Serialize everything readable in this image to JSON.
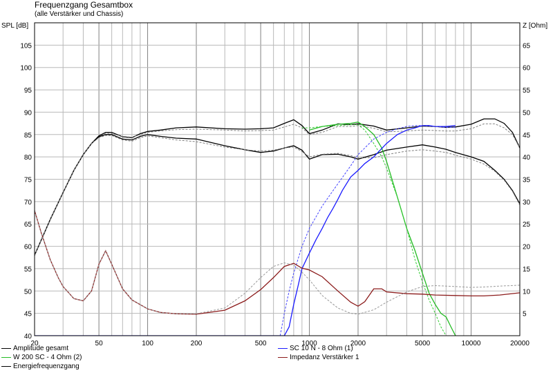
{
  "chart_data": {
    "type": "line",
    "title": "Frequenzgang Gesamtbox",
    "subtitle": "(alle Verstärker und Chassis)",
    "ylabel_left": "SPL [dB]",
    "ylabel_right": "Z [Ohm]",
    "x_scale": "log",
    "xlim": [
      20,
      20000
    ],
    "ylim_left": [
      40,
      110
    ],
    "ylim_right": [
      0,
      70
    ],
    "grid": true,
    "x_ticks": [
      "20",
      "50",
      "100",
      "200",
      "500",
      "1000",
      "2000",
      "5000",
      "10000",
      "20000"
    ],
    "y_ticks_left": [
      "40",
      "45",
      "50",
      "55",
      "60",
      "65",
      "70",
      "75",
      "80",
      "85",
      "90",
      "95",
      "100",
      "105"
    ],
    "y_ticks_right": [
      "5",
      "10",
      "15",
      "20",
      "25",
      "30",
      "35",
      "40",
      "45",
      "50",
      "55",
      "60",
      "65"
    ],
    "series": [
      {
        "name": "Amplitude gesamt",
        "color": "#000000",
        "dashed": false,
        "x": [
          20,
          25,
          30,
          35,
          40,
          45,
          50,
          55,
          60,
          70,
          80,
          90,
          100,
          120,
          150,
          200,
          300,
          400,
          500,
          600,
          700,
          800,
          900,
          1000,
          1200,
          1500,
          1800,
          2000,
          2500,
          3000,
          4000,
          5000,
          6000,
          7000,
          8000,
          10000,
          12000,
          14000,
          16000,
          18000,
          20000
        ],
        "y": [
          58,
          66,
          72,
          77,
          80.5,
          83,
          84.7,
          85.5,
          85.5,
          84.5,
          84.3,
          85.2,
          85.7,
          86,
          86.5,
          86.7,
          86.3,
          86.2,
          86.3,
          86.5,
          87.5,
          88.3,
          87,
          85.2,
          86,
          87.4,
          87.2,
          87.4,
          86.9,
          86,
          86.5,
          86.9,
          86.8,
          86.6,
          86.7,
          87.3,
          88.5,
          88.5,
          87.5,
          85.5,
          82
        ]
      },
      {
        "name": "Amplitude gesamt",
        "color": "#808080",
        "dashed": true,
        "x": [
          20,
          25,
          30,
          35,
          40,
          45,
          50,
          55,
          60,
          70,
          80,
          90,
          100,
          120,
          150,
          200,
          300,
          400,
          500,
          600,
          700,
          800,
          900,
          1000,
          1200,
          1500,
          1800,
          2000,
          2500,
          3000,
          4000,
          5000,
          6000,
          7000,
          8000,
          10000,
          12000,
          14000,
          16000,
          18000,
          20000
        ],
        "y": [
          58,
          66,
          72,
          77,
          80.5,
          83,
          84.5,
          85.3,
          85.2,
          84.6,
          84.4,
          85,
          85.5,
          85.8,
          86.1,
          86.2,
          86,
          85.8,
          85.9,
          86,
          86.7,
          87.3,
          86.5,
          85,
          85.5,
          86.8,
          86.8,
          87,
          86.4,
          85.6,
          85.8,
          86,
          85.9,
          85.8,
          85.8,
          86.3,
          87.4,
          87.4,
          86.5,
          85,
          82
        ]
      },
      {
        "name": "Energiefrequenzgang",
        "color": "#000000",
        "dashed": false,
        "x": [
          20,
          25,
          30,
          35,
          40,
          45,
          50,
          55,
          60,
          70,
          80,
          90,
          100,
          120,
          150,
          200,
          300,
          400,
          500,
          600,
          700,
          800,
          900,
          1000,
          1200,
          1500,
          1800,
          2000,
          2500,
          3000,
          4000,
          5000,
          6000,
          7000,
          8000,
          10000,
          12000,
          14000,
          16000,
          18000,
          20000
        ],
        "y": [
          58,
          66,
          72,
          77,
          80.5,
          83,
          84.5,
          85,
          85,
          84,
          83.8,
          84.6,
          85,
          84.6,
          84.2,
          84,
          82.5,
          81.6,
          81,
          81.3,
          82,
          82.5,
          81.5,
          79.5,
          80.5,
          80.6,
          80,
          79.5,
          80.5,
          81.5,
          82.2,
          82.7,
          82.2,
          81.7,
          81,
          80,
          79,
          77,
          75,
          72.5,
          69.5
        ]
      },
      {
        "name": "Energiefrequenzgang",
        "color": "#808080",
        "dashed": true,
        "x": [
          20,
          25,
          30,
          35,
          40,
          45,
          50,
          55,
          60,
          70,
          80,
          90,
          100,
          120,
          150,
          200,
          300,
          400,
          500,
          600,
          700,
          800,
          900,
          1000,
          1200,
          1500,
          1800,
          2000,
          2500,
          3000,
          4000,
          5000,
          6000,
          7000,
          8000,
          10000,
          12000,
          14000,
          16000,
          18000,
          20000
        ],
        "y": [
          58,
          66,
          72,
          77,
          80.5,
          83,
          84.3,
          84.8,
          84.8,
          83.8,
          83.5,
          84.3,
          84.7,
          84.3,
          83.8,
          83.4,
          82.2,
          81.6,
          81.3,
          81.5,
          82,
          82.2,
          81.2,
          80,
          80.6,
          80.8,
          80.3,
          79.8,
          79.8,
          80.5,
          81.3,
          81.6,
          81.3,
          81,
          80.4,
          79.5,
          78.4,
          76.8,
          74.8,
          72.3,
          69.2
        ]
      },
      {
        "name": "W 200 SC - 4 Ohm (2)",
        "color": "#22bb22",
        "dashed": false,
        "x": [
          1000,
          1200,
          1500,
          1800,
          2000,
          2200,
          2500,
          2800,
          3000,
          3500,
          4000,
          4500,
          5000,
          5500,
          6000,
          6500,
          7000,
          7500,
          8000
        ],
        "y": [
          86,
          86.8,
          87.3,
          87.5,
          87.8,
          86.8,
          85,
          82,
          79,
          71,
          64,
          59,
          54,
          49.5,
          47,
          45,
          44.2,
          42,
          40
        ]
      },
      {
        "name": "W 200 SC - 4 Ohm (2)",
        "color": "#33cc33",
        "dashed": true,
        "x": [
          900,
          1000,
          1200,
          1500,
          1800,
          2000,
          2200,
          2500,
          2800,
          3000,
          3500,
          4000,
          4500,
          5000,
          5500,
          6000,
          6500,
          7000
        ],
        "y": [
          86.5,
          86.5,
          86.8,
          87,
          87.2,
          87.2,
          86,
          83,
          80,
          77.5,
          71,
          64,
          57,
          52,
          48,
          45,
          42,
          40
        ]
      },
      {
        "name": "SC 10 N - 8 Ohm (1)",
        "color": "#1a1aff",
        "dashed": false,
        "x": [
          20,
          700,
          750,
          800,
          850,
          900,
          1000,
          1100,
          1200,
          1300,
          1400,
          1500,
          1600,
          1800,
          2000,
          2200,
          2500,
          3000,
          3500,
          4000,
          4500,
          5000,
          5500,
          6000,
          7000,
          8000
        ],
        "y": [
          40,
          40,
          42,
          47,
          51,
          55,
          58.5,
          61.5,
          64,
          66.5,
          68.5,
          70.5,
          72.5,
          75.5,
          77,
          78.5,
          80,
          83,
          85,
          86,
          86.5,
          87,
          87,
          86.8,
          86.8,
          87
        ]
      },
      {
        "name": "SC 10 N - 8 Ohm (1)",
        "color": "#4444ff",
        "dashed": true,
        "x": [
          660,
          700,
          750,
          800,
          900,
          1000,
          1200,
          1500,
          1800,
          2000,
          2500,
          3000,
          3500,
          4000,
          4500,
          5000,
          5500,
          6000,
          7000,
          8000
        ],
        "y": [
          40,
          45,
          50,
          54,
          60,
          64,
          69,
          74,
          78,
          80.5,
          84,
          85.5,
          86.3,
          86.8,
          87,
          87,
          86.9,
          86.8,
          86.6,
          86.6
        ]
      },
      {
        "name": "Impedanz Verstärker 1",
        "color": "#8b1a1a",
        "dashed": false,
        "axis": "right",
        "x": [
          20,
          22,
          25,
          28,
          30,
          35,
          40,
          45,
          50,
          55,
          60,
          70,
          80,
          100,
          120,
          150,
          200,
          300,
          400,
          500,
          600,
          700,
          800,
          900,
          1000,
          1200,
          1500,
          1800,
          2000,
          2200,
          2500,
          2800,
          3000,
          4000,
          5000,
          6000,
          8000,
          10000,
          12000,
          15000,
          20000
        ],
        "y": [
          28,
          23,
          17,
          13,
          11,
          8.3,
          7.8,
          10,
          16,
          19,
          16,
          10.5,
          8,
          6,
          5.2,
          4.9,
          4.8,
          5.7,
          7.8,
          10.3,
          13,
          15.5,
          16.2,
          15.1,
          14.7,
          13.2,
          10,
          7.5,
          6.6,
          7.6,
          10.5,
          10.5,
          9.8,
          9.4,
          9.3,
          9.1,
          9,
          8.9,
          8.9,
          9.1,
          9.6
        ]
      },
      {
        "name": "Impedanz Verstärker 1",
        "color": "#999999",
        "dashed": true,
        "axis": "right",
        "x": [
          20,
          22,
          25,
          28,
          30,
          35,
          40,
          45,
          50,
          55,
          60,
          70,
          80,
          100,
          120,
          150,
          200,
          300,
          400,
          500,
          600,
          700,
          800,
          900,
          1000,
          1200,
          1500,
          1800,
          2000,
          2500,
          3000,
          4000,
          5000,
          6000,
          8000,
          10000,
          12000,
          15000,
          20000
        ],
        "y": [
          28,
          23,
          17,
          13,
          11,
          8.3,
          7.8,
          10,
          16,
          19,
          16,
          10.5,
          8,
          6,
          5.2,
          4.9,
          4.9,
          6.2,
          9.5,
          13,
          15.5,
          16.3,
          15.8,
          14.2,
          12.5,
          9,
          6.2,
          5,
          4.8,
          5.8,
          7.5,
          9.8,
          11,
          11.2,
          11,
          10.8,
          10.9,
          11.1,
          11.3
        ]
      }
    ],
    "legend": [
      {
        "label": "Amplitude gesamt",
        "color": "#000000"
      },
      {
        "label": "SC 10 N - 8 Ohm (1)",
        "color": "#1a1aff"
      },
      {
        "label": "W 200 SC - 4 Ohm (2)",
        "color": "#22bb22"
      },
      {
        "label": "Impedanz Verstärker 1",
        "color": "#8b1a1a"
      },
      {
        "label": "Energiefrequenzgang",
        "color": "#000000"
      }
    ]
  }
}
